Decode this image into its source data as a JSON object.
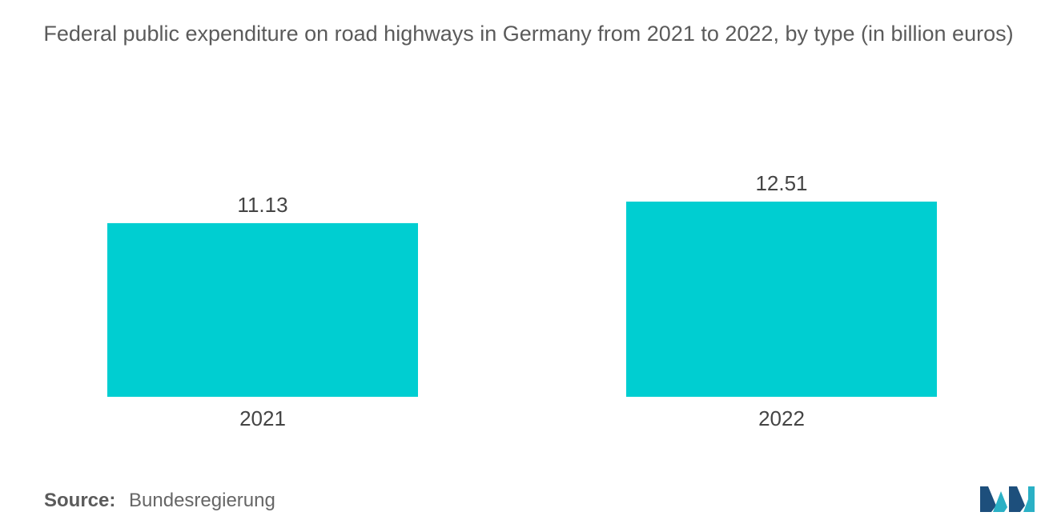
{
  "chart_data": {
    "type": "bar",
    "title": "Federal public expenditure on road highways in Germany from 2021 to 2022, by type (in billion euros)",
    "categories": [
      "2021",
      "2022"
    ],
    "values": [
      11.13,
      12.51
    ],
    "value_labels": [
      "11.13",
      "12.51"
    ],
    "xlabel": "",
    "ylabel": "",
    "ylim": [
      0,
      12.51
    ],
    "grid": false,
    "legend": "none",
    "bar_color": "#00ced1"
  },
  "source": {
    "label": "Source:",
    "text": "Bundesregierung"
  },
  "logo": {
    "icon": "mordor-intelligence-logo-icon",
    "colors": [
      "#1d4f7c",
      "#2ab0c5"
    ]
  }
}
